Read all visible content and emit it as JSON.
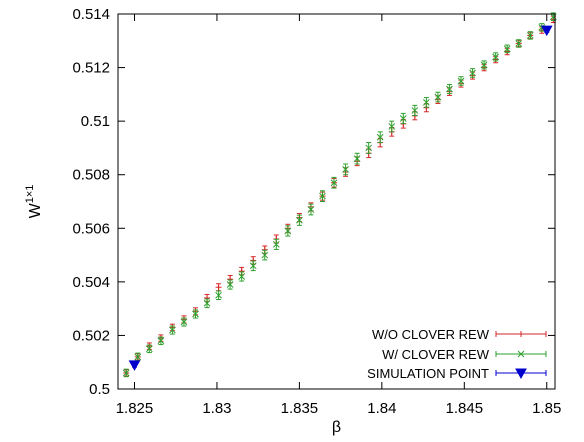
{
  "chart_data": {
    "type": "scatter",
    "title": "",
    "xlabel": "β",
    "ylabel_base": "W",
    "ylabel_sup": "1×1",
    "xlim": [
      1.824,
      1.8505
    ],
    "ylim": [
      0.5,
      0.514
    ],
    "xticks": [
      1.825,
      1.83,
      1.835,
      1.84,
      1.845,
      1.85
    ],
    "xtick_labels": [
      "1.825",
      "1.83",
      "1.835",
      "1.84",
      "1.845",
      "1.85"
    ],
    "yticks": [
      0.5,
      0.502,
      0.504,
      0.506,
      0.508,
      0.51,
      0.512,
      0.514
    ],
    "ytick_labels": [
      "0.5",
      "0.502",
      "0.504",
      "0.506",
      "0.508",
      "0.51",
      "0.512",
      "0.514"
    ],
    "grid": false,
    "legend_position": "bottom-right",
    "series": [
      {
        "name": "W/O CLOVER REW",
        "color": "#d62728",
        "marker": "plus",
        "x": [
          1.8245,
          1.8252,
          1.8259,
          1.8266,
          1.8273,
          1.828,
          1.8287,
          1.8294,
          1.8301,
          1.8308,
          1.8315,
          1.8322,
          1.8329,
          1.8336,
          1.8343,
          1.835,
          1.8357,
          1.8364,
          1.8371,
          1.8378,
          1.8385,
          1.8392,
          1.8399,
          1.8406,
          1.8413,
          1.842,
          1.8427,
          1.8434,
          1.8441,
          1.8448,
          1.8455,
          1.8462,
          1.8469,
          1.8476,
          1.8483,
          1.849,
          1.8497,
          1.8504
        ],
        "y": [
          0.5006,
          0.5012,
          0.5016,
          0.5019,
          0.5023,
          0.5026,
          0.5029,
          0.5034,
          0.5038,
          0.5041,
          0.5044,
          0.5048,
          0.5052,
          0.5056,
          0.506,
          0.5064,
          0.5068,
          0.5072,
          0.5077,
          0.5081,
          0.5085,
          0.5088,
          0.5092,
          0.5096,
          0.5099,
          0.5102,
          0.5105,
          0.5108,
          0.5111,
          0.5114,
          0.5117,
          0.512,
          0.5123,
          0.5126,
          0.5129,
          0.5132,
          0.5134,
          0.5138
        ],
        "err": [
          0.00012,
          0.00012,
          0.00012,
          0.00012,
          0.00012,
          0.00013,
          0.00013,
          0.00013,
          0.00013,
          0.00014,
          0.00014,
          0.00014,
          0.00014,
          0.00015,
          0.00015,
          0.00015,
          0.00015,
          0.00015,
          0.00016,
          0.00016,
          0.00016,
          0.00016,
          0.00016,
          0.00016,
          0.00016,
          0.00015,
          0.00015,
          0.00014,
          0.00014,
          0.00013,
          0.00013,
          0.00012,
          0.00012,
          0.00012,
          0.00012,
          0.00012,
          0.00012,
          0.00012
        ]
      },
      {
        "name": "W/ CLOVER REW",
        "color": "#2ca02c",
        "marker": "cross",
        "x": [
          1.8245,
          1.8252,
          1.8259,
          1.8266,
          1.8273,
          1.828,
          1.8287,
          1.8294,
          1.8301,
          1.8308,
          1.8315,
          1.8322,
          1.8329,
          1.8336,
          1.8343,
          1.835,
          1.8357,
          1.8364,
          1.8371,
          1.8378,
          1.8385,
          1.8392,
          1.8399,
          1.8406,
          1.8413,
          1.842,
          1.8427,
          1.8434,
          1.8441,
          1.8448,
          1.8455,
          1.8462,
          1.8469,
          1.8476,
          1.8483,
          1.849,
          1.8497,
          1.8504
        ],
        "y": [
          0.5006,
          0.5012,
          0.5015,
          0.5018,
          0.5022,
          0.5025,
          0.5028,
          0.5032,
          0.5035,
          0.5039,
          0.5042,
          0.5046,
          0.505,
          0.5054,
          0.5059,
          0.5063,
          0.5067,
          0.5072,
          0.5077,
          0.5082,
          0.5086,
          0.509,
          0.5094,
          0.5098,
          0.5101,
          0.5104,
          0.5107,
          0.5109,
          0.5112,
          0.5115,
          0.5118,
          0.5121,
          0.5124,
          0.5127,
          0.5129,
          0.5132,
          0.5135,
          0.5139
        ],
        "err": [
          0.00014,
          0.00014,
          0.00014,
          0.00014,
          0.00015,
          0.00015,
          0.00015,
          0.00016,
          0.00016,
          0.00017,
          0.00017,
          0.00018,
          0.00018,
          0.00019,
          0.00019,
          0.00019,
          0.0002,
          0.0002,
          0.0002,
          0.0002,
          0.0002,
          0.0002,
          0.0002,
          0.0002,
          0.00019,
          0.00019,
          0.00018,
          0.00018,
          0.00017,
          0.00016,
          0.00016,
          0.00015,
          0.00015,
          0.00014,
          0.00014,
          0.00014,
          0.00014,
          0.00014
        ]
      },
      {
        "name": "SIMULATION POINT",
        "color": "#0000cc",
        "marker": "triangle-down",
        "x": [
          1.825,
          1.85
        ],
        "y": [
          0.5009,
          0.5134
        ],
        "err": [
          8e-05,
          8e-05
        ]
      }
    ]
  }
}
